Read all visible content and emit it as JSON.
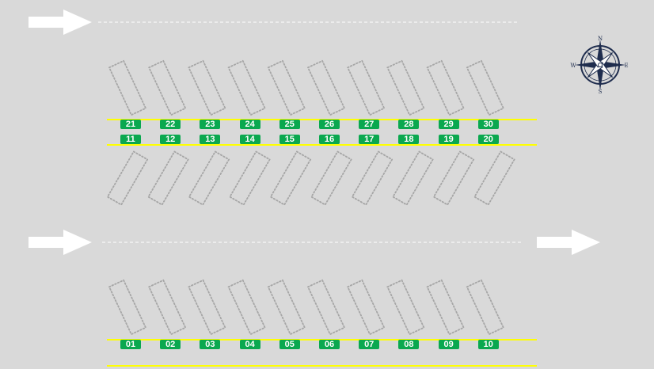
{
  "colors": {
    "background": "#d9d9d9",
    "line": "#ffff00",
    "dash": "#ffffff",
    "arrow": "#ffffff",
    "spot_outline": "#a6a6a6",
    "badge": "#0aa84f",
    "compass": "#1f2d4e"
  },
  "compass": {
    "n": "N",
    "e": "E",
    "s": "S",
    "w": "W",
    "icon": "compass-rose-icon"
  },
  "rows": [
    {
      "name": "upper-north",
      "spots": [
        "21",
        "22",
        "23",
        "24",
        "25",
        "26",
        "27",
        "28",
        "29",
        "30"
      ]
    },
    {
      "name": "upper-south",
      "spots": [
        "11",
        "12",
        "13",
        "14",
        "15",
        "16",
        "17",
        "18",
        "19",
        "20"
      ]
    },
    {
      "name": "lower",
      "spots": [
        "01",
        "02",
        "03",
        "04",
        "05",
        "06",
        "07",
        "08",
        "09",
        "10"
      ]
    }
  ],
  "arrows": [
    {
      "name": "top-left-arrow",
      "direction": "east"
    },
    {
      "name": "middle-left-arrow",
      "direction": "east"
    },
    {
      "name": "middle-right-arrow",
      "direction": "east"
    }
  ]
}
